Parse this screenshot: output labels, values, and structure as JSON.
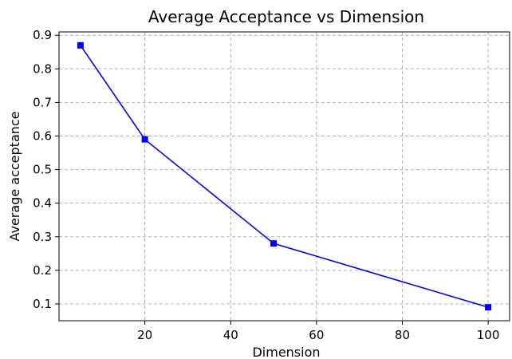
{
  "chart_data": {
    "type": "line",
    "title": "Average Acceptance vs Dimension",
    "xlabel": "Dimension",
    "ylabel": "Average acceptance",
    "xlim": [
      0,
      105
    ],
    "ylim": [
      0.05,
      0.91
    ],
    "xticks": [
      20,
      40,
      60,
      80,
      100
    ],
    "yticks": [
      0.1,
      0.2,
      0.3,
      0.4,
      0.5,
      0.6,
      0.7,
      0.8,
      0.9
    ],
    "grid": true,
    "series": [
      {
        "color": "#0000ff",
        "marker": "square",
        "x": [
          5,
          20,
          50,
          100
        ],
        "y": [
          0.87,
          0.59,
          0.28,
          0.09
        ]
      }
    ]
  }
}
